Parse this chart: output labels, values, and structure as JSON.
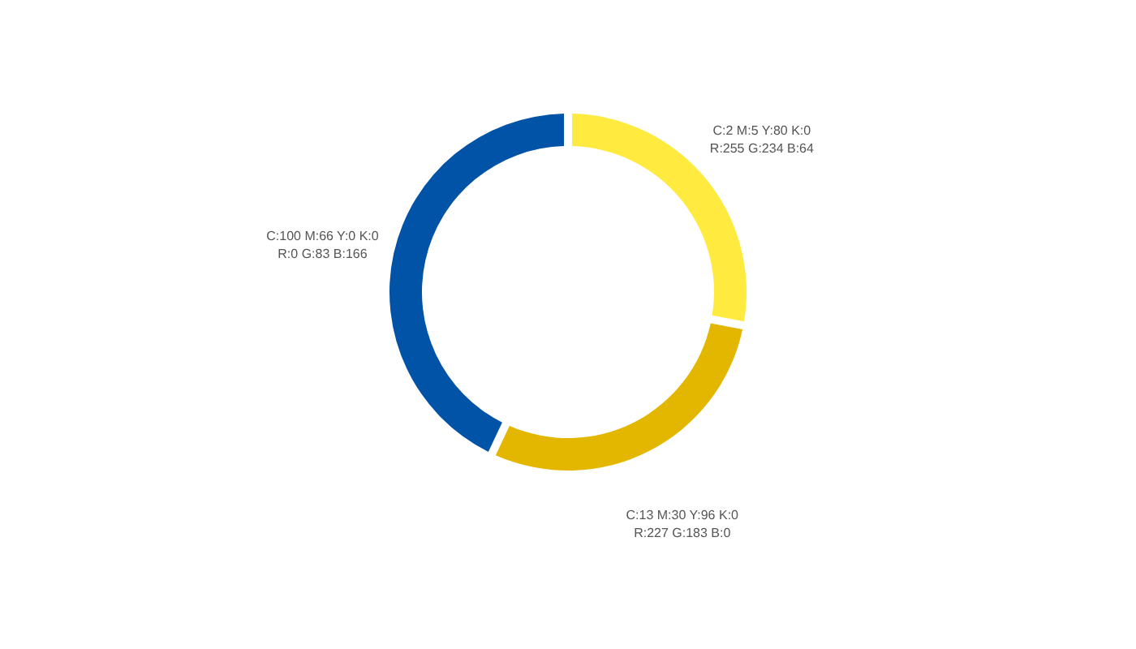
{
  "chart_data": {
    "type": "donut",
    "categories": [
      "C:2 M:5 Y:80 K:0\nR:255 G:234 B:64",
      "C:13 M:30 Y:96 K:0\nR:227 G:183 B:0",
      "C:100 M:66 Y:0 K:0\nR:0 G:83 B:166"
    ],
    "values": [
      28,
      29,
      43
    ],
    "colors": [
      "#ffea40",
      "#e3b700",
      "#0053a6"
    ]
  }
}
